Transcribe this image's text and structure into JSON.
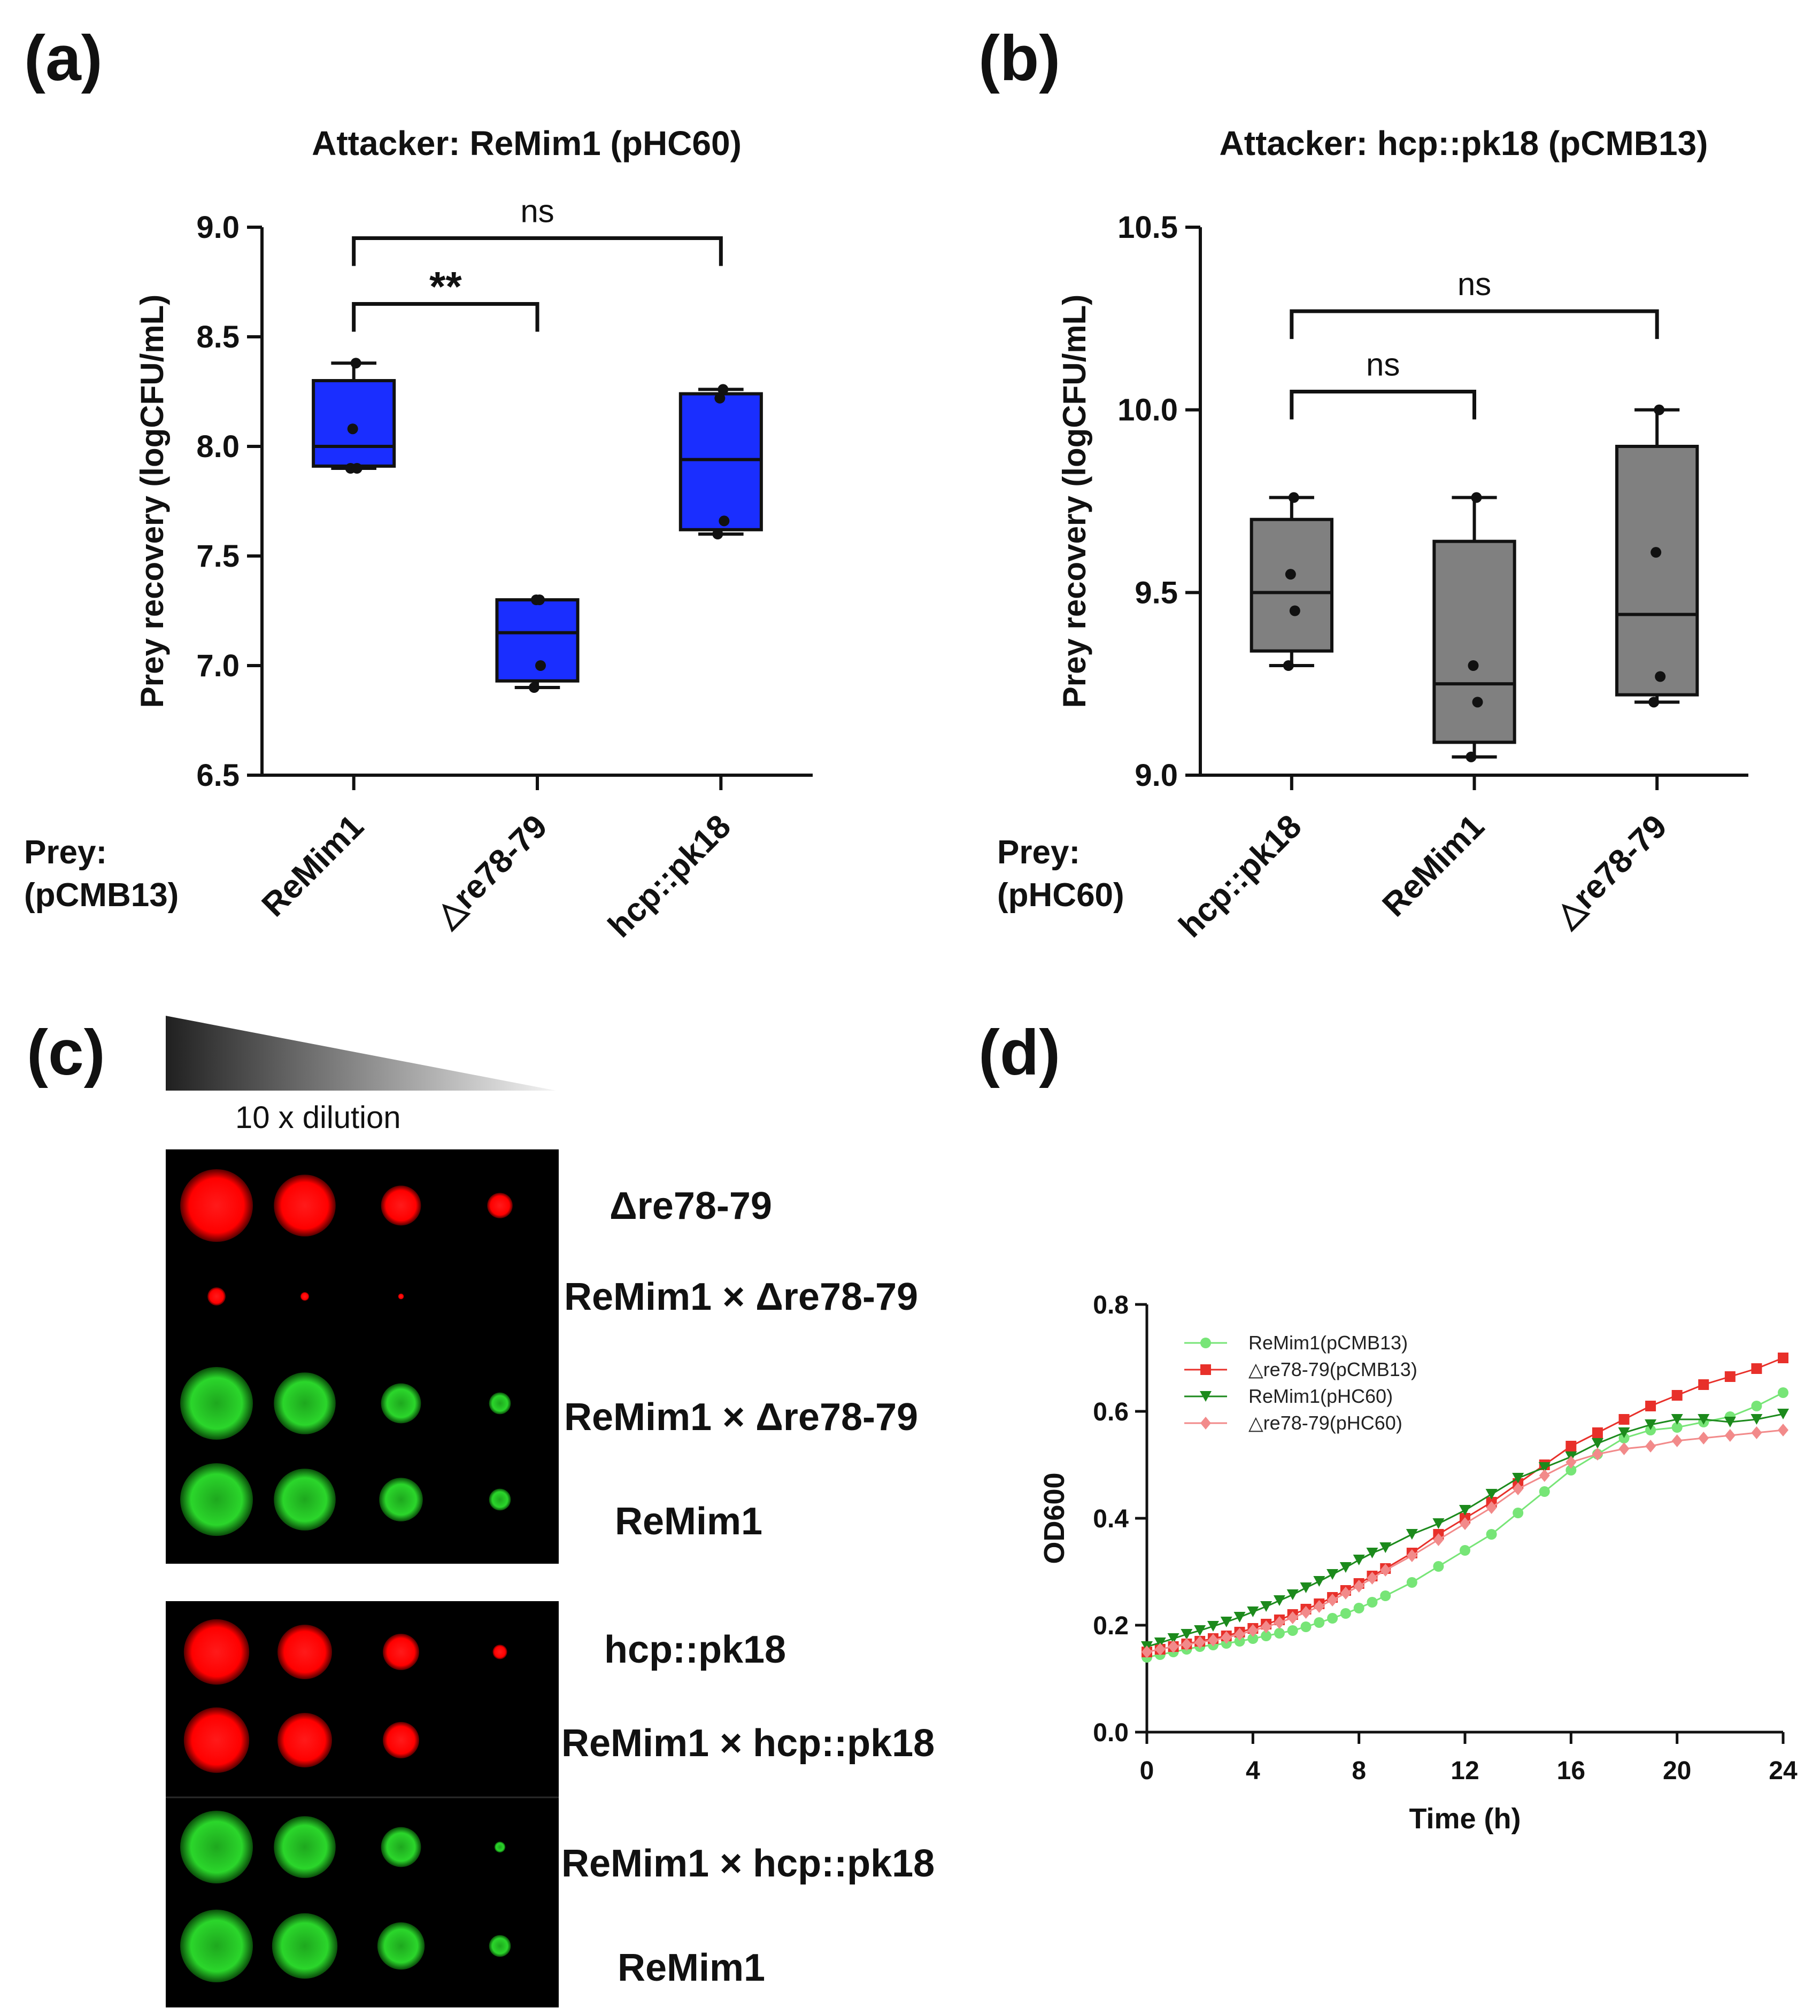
{
  "panels": {
    "a": "(a)",
    "b": "(b)",
    "c": "(c)",
    "d": "(d)"
  },
  "prey_a": {
    "line1": "Prey:",
    "line2": "(pCMB13)"
  },
  "prey_b": {
    "line1": "Prey:",
    "line2": "(pHC60)"
  },
  "chart_data": [
    {
      "id": "a",
      "type": "box",
      "title": "Attacker: ReMim1 (pHC60)",
      "ylabel": "Prey recovery (logCFU/mL)",
      "ylim": [
        6.5,
        9.0
      ],
      "yticks": [
        "6.5",
        "7.0",
        "7.5",
        "8.0",
        "8.5",
        "9.0"
      ],
      "ytick_values": [
        6.5,
        7.0,
        7.5,
        8.0,
        8.5,
        9.0
      ],
      "color": "#1a2eff",
      "categories": [
        "ReMim1",
        "△re78-79",
        "hcp::pk18"
      ],
      "boxes": [
        {
          "min": 7.9,
          "q1": 7.91,
          "median": 8.0,
          "q3": 8.3,
          "max": 8.38,
          "points": [
            7.9,
            7.9,
            8.08,
            8.38
          ]
        },
        {
          "min": 6.9,
          "q1": 6.93,
          "median": 7.15,
          "q3": 7.3,
          "max": 7.3,
          "points": [
            6.9,
            7.0,
            7.3,
            7.3
          ]
        },
        {
          "min": 7.6,
          "q1": 7.62,
          "median": 7.94,
          "q3": 8.24,
          "max": 8.26,
          "points": [
            7.6,
            7.66,
            8.22,
            8.26
          ]
        }
      ],
      "significance": [
        {
          "from": 0,
          "to": 1,
          "label": "**",
          "y": 8.65
        },
        {
          "from": 0,
          "to": 2,
          "label": "ns",
          "y": 8.95
        }
      ]
    },
    {
      "id": "b",
      "type": "box",
      "title": "Attacker: hcp::pk18 (pCMB13)",
      "ylabel": "Prey recovery (logCFU/mL)",
      "ylim": [
        9.0,
        10.5
      ],
      "yticks": [
        "9.0",
        "9.5",
        "10.0",
        "10.5"
      ],
      "ytick_values": [
        9.0,
        9.5,
        10.0,
        10.5
      ],
      "color": "#808080",
      "categories": [
        "hcp::pk18",
        "ReMim1",
        "△re78-79"
      ],
      "boxes": [
        {
          "min": 9.3,
          "q1": 9.34,
          "median": 9.5,
          "q3": 9.7,
          "max": 9.76,
          "points": [
            9.3,
            9.45,
            9.55,
            9.76
          ]
        },
        {
          "min": 9.05,
          "q1": 9.09,
          "median": 9.25,
          "q3": 9.64,
          "max": 9.76,
          "points": [
            9.05,
            9.2,
            9.3,
            9.76
          ]
        },
        {
          "min": 9.2,
          "q1": 9.22,
          "median": 9.44,
          "q3": 9.9,
          "max": 10.0,
          "points": [
            9.2,
            9.27,
            9.61,
            10.0
          ]
        }
      ],
      "significance": [
        {
          "from": 0,
          "to": 1,
          "label": "ns",
          "y": 10.05
        },
        {
          "from": 0,
          "to": 2,
          "label": "ns",
          "y": 10.27
        }
      ]
    },
    {
      "id": "d",
      "type": "line",
      "xlabel": "Time (h)",
      "ylabel": "OD600",
      "xlim": [
        0,
        24
      ],
      "ylim": [
        0.0,
        0.8
      ],
      "xticks": [
        "0",
        "4",
        "8",
        "12",
        "16",
        "20",
        "24"
      ],
      "xtick_values": [
        0,
        4,
        8,
        12,
        16,
        20,
        24
      ],
      "yticks": [
        "0.0",
        "0.2",
        "0.4",
        "0.6",
        "0.8"
      ],
      "ytick_values": [
        0.0,
        0.2,
        0.4,
        0.6,
        0.8
      ],
      "series": [
        {
          "name": "ReMim1(pCMB13)",
          "color": "#77e577",
          "marker": "circle",
          "x": [
            0,
            0.5,
            1,
            1.5,
            2,
            2.5,
            3,
            3.5,
            4,
            4.5,
            5,
            5.5,
            6,
            6.5,
            7,
            7.5,
            8,
            8.5,
            9,
            10,
            11,
            12,
            13,
            14,
            15,
            16,
            17,
            18,
            19,
            20,
            21,
            22,
            23,
            24
          ],
          "y": [
            0.14,
            0.145,
            0.15,
            0.155,
            0.16,
            0.163,
            0.166,
            0.17,
            0.175,
            0.18,
            0.185,
            0.19,
            0.197,
            0.205,
            0.213,
            0.222,
            0.232,
            0.243,
            0.255,
            0.28,
            0.31,
            0.34,
            0.37,
            0.41,
            0.45,
            0.49,
            0.52,
            0.55,
            0.565,
            0.57,
            0.58,
            0.59,
            0.61,
            0.635
          ]
        },
        {
          "name": "△re78-79(pCMB13)",
          "color": "#e8302a",
          "marker": "square",
          "x": [
            0,
            0.5,
            1,
            1.5,
            2,
            2.5,
            3,
            3.5,
            4,
            4.5,
            5,
            5.5,
            6,
            6.5,
            7,
            7.5,
            8,
            8.5,
            9,
            10,
            11,
            12,
            13,
            14,
            15,
            16,
            17,
            18,
            19,
            20,
            21,
            22,
            23,
            24
          ],
          "y": [
            0.15,
            0.155,
            0.16,
            0.165,
            0.17,
            0.175,
            0.18,
            0.187,
            0.194,
            0.202,
            0.21,
            0.22,
            0.23,
            0.24,
            0.252,
            0.265,
            0.278,
            0.292,
            0.306,
            0.335,
            0.37,
            0.4,
            0.43,
            0.465,
            0.5,
            0.535,
            0.56,
            0.585,
            0.61,
            0.63,
            0.65,
            0.665,
            0.68,
            0.7
          ]
        },
        {
          "name": "ReMim1(pHC60)",
          "color": "#1c8a1c",
          "marker": "triangle-down",
          "x": [
            0,
            0.5,
            1,
            1.5,
            2,
            2.5,
            3,
            3.5,
            4,
            4.5,
            5,
            5.5,
            6,
            6.5,
            7,
            7.5,
            8,
            8.5,
            9,
            10,
            11,
            12,
            13,
            14,
            15,
            16,
            17,
            18,
            19,
            20,
            21,
            22,
            23,
            24
          ],
          "y": [
            0.16,
            0.167,
            0.175,
            0.183,
            0.19,
            0.198,
            0.206,
            0.215,
            0.225,
            0.235,
            0.246,
            0.257,
            0.27,
            0.282,
            0.295,
            0.308,
            0.322,
            0.335,
            0.345,
            0.37,
            0.39,
            0.415,
            0.445,
            0.475,
            0.495,
            0.515,
            0.54,
            0.56,
            0.575,
            0.585,
            0.585,
            0.58,
            0.585,
            0.595
          ]
        },
        {
          "name": "△re78-79(pHC60)",
          "color": "#f28a8a",
          "marker": "diamond",
          "x": [
            0,
            0.5,
            1,
            1.5,
            2,
            2.5,
            3,
            3.5,
            4,
            4.5,
            5,
            5.5,
            6,
            6.5,
            7,
            7.5,
            8,
            8.5,
            9,
            10,
            11,
            12,
            13,
            14,
            15,
            16,
            17,
            18,
            19,
            20,
            21,
            22,
            23,
            24
          ],
          "y": [
            0.15,
            0.155,
            0.16,
            0.164,
            0.168,
            0.172,
            0.177,
            0.183,
            0.19,
            0.197,
            0.205,
            0.214,
            0.224,
            0.235,
            0.247,
            0.26,
            0.273,
            0.288,
            0.303,
            0.33,
            0.36,
            0.39,
            0.42,
            0.455,
            0.48,
            0.505,
            0.52,
            0.53,
            0.535,
            0.545,
            0.55,
            0.555,
            0.56,
            0.565
          ]
        }
      ]
    }
  ],
  "panel_c": {
    "dilution_label": "10 x dilution",
    "rows_top": [
      {
        "label": "Δre78-79",
        "color": "red",
        "sizes": [
          1.0,
          0.85,
          0.55,
          0.35
        ]
      },
      {
        "label": "ReMim1 × Δre78-79",
        "color": "red",
        "sizes": [
          0.25,
          0.12,
          0.08,
          0.0
        ]
      },
      {
        "label": "ReMim1 × Δre78-79",
        "color": "green",
        "sizes": [
          1.0,
          0.85,
          0.55,
          0.3
        ]
      },
      {
        "label": "ReMim1",
        "color": "green",
        "sizes": [
          1.0,
          0.85,
          0.6,
          0.3
        ]
      }
    ],
    "rows_bottom": [
      {
        "label": "hcp::pk18",
        "color": "red",
        "sizes": [
          0.9,
          0.75,
          0.5,
          0.2
        ]
      },
      {
        "label": "ReMim1 × hcp::pk18",
        "color": "red",
        "sizes": [
          0.9,
          0.75,
          0.5,
          0.0
        ]
      },
      {
        "label": "ReMim1 × hcp::pk18",
        "color": "green",
        "sizes": [
          1.0,
          0.85,
          0.55,
          0.15
        ]
      },
      {
        "label": "ReMim1",
        "color": "green",
        "sizes": [
          1.0,
          0.9,
          0.65,
          0.3
        ]
      }
    ]
  }
}
